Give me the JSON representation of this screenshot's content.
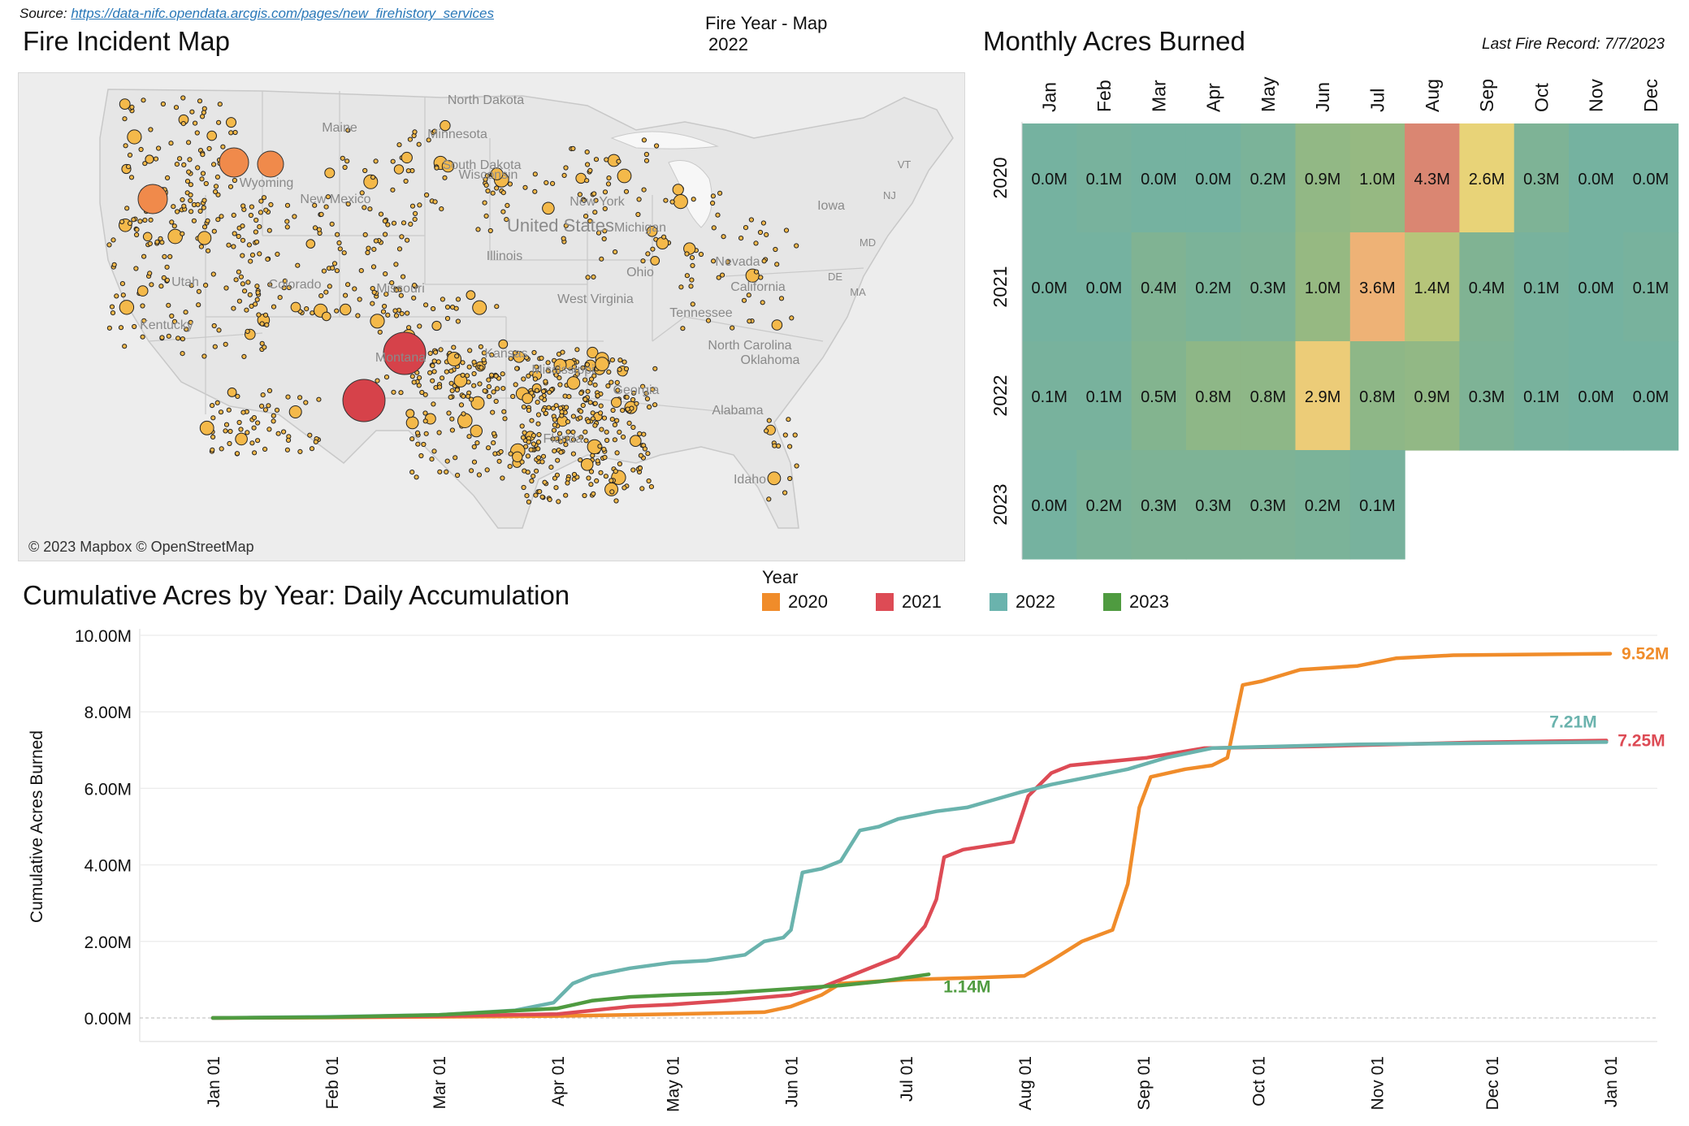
{
  "source": {
    "prefix": "Source:",
    "url": "https://data-nifc.opendata.arcgis.com/pages/new_firehistory_services"
  },
  "map": {
    "title": "Fire Incident Map",
    "param_label": "Fire Year - Map",
    "param_value": "2022",
    "attribution": "© 2023 Mapbox © OpenStreetMap",
    "labels": [
      "North Dakota",
      "Minnesota",
      "South Dakota",
      "Wisconsin",
      "Michigan",
      "New York",
      "Iowa",
      "United States",
      "Illinois",
      "Ohio",
      "Nevada",
      "Utah",
      "Colorado",
      "Missouri",
      "West Virginia",
      "California",
      "Kentucky",
      "Tennessee",
      "North Carolina",
      "Oklahoma",
      "Kansas",
      "Mississippi",
      "Georgia",
      "Alabama",
      "Florida",
      "Idaho",
      "Wyoming",
      "New Mexico",
      "Montana",
      "Maine",
      "VT",
      "NJ",
      "MD",
      "DE",
      "MA"
    ],
    "colors": {
      "small": "#f4b94a",
      "medium": "#f08a4b",
      "large": "#d6424a",
      "land": "#ececec",
      "border": "#b8b8b8"
    }
  },
  "heatmap": {
    "title": "Monthly Acres Burned",
    "last_record": "Last Fire Record: 7/7/2023",
    "months": [
      "Jan",
      "Feb",
      "Mar",
      "Apr",
      "May",
      "Jun",
      "Jul",
      "Aug",
      "Sep",
      "Oct",
      "Nov",
      "Dec"
    ],
    "years": [
      "2020",
      "2021",
      "2022",
      "2023"
    ],
    "values": [
      [
        0.0,
        0.1,
        0.0,
        0.0,
        0.2,
        0.9,
        1.0,
        4.3,
        2.6,
        0.3,
        0.0,
        0.0
      ],
      [
        0.0,
        0.0,
        0.4,
        0.2,
        0.3,
        1.0,
        3.6,
        1.4,
        0.4,
        0.1,
        0.0,
        0.1
      ],
      [
        0.1,
        0.1,
        0.5,
        0.8,
        0.8,
        2.9,
        0.8,
        0.9,
        0.3,
        0.1,
        0.0,
        0.0
      ],
      [
        0.0,
        0.2,
        0.3,
        0.3,
        0.3,
        0.2,
        0.1,
        null,
        null,
        null,
        null,
        null
      ]
    ],
    "unit_suffix": "M"
  },
  "chart_data": {
    "type": "line",
    "title": "Cumulative Acres by Year: Daily Accumulation",
    "ylabel": "Cumulative Acres Burned",
    "xlabel": "",
    "ylim": [
      0,
      10.0
    ],
    "y_ticks": [
      "0.00M",
      "2.00M",
      "4.00M",
      "6.00M",
      "8.00M",
      "10.00M"
    ],
    "x_ticks": [
      "Jan 01",
      "Feb 01",
      "Mar 01",
      "Apr 01",
      "May 01",
      "Jun 01",
      "Jul 01",
      "Aug 01",
      "Sep 01",
      "Oct 01",
      "Nov 01",
      "Dec 01",
      "Jan 01"
    ],
    "legend_title": "Year",
    "legend_position": "top",
    "series": [
      {
        "name": "2020",
        "color": "#f08c2a",
        "end_label": "9.52M",
        "points": [
          [
            1,
            0
          ],
          [
            31,
            0.01
          ],
          [
            60,
            0.03
          ],
          [
            91,
            0.05
          ],
          [
            121,
            0.1
          ],
          [
            145,
            0.15
          ],
          [
            152,
            0.3
          ],
          [
            160,
            0.6
          ],
          [
            165,
            0.9
          ],
          [
            182,
            1.0
          ],
          [
            200,
            1.05
          ],
          [
            213,
            1.1
          ],
          [
            220,
            1.5
          ],
          [
            228,
            2.0
          ],
          [
            236,
            2.3
          ],
          [
            240,
            3.5
          ],
          [
            243,
            5.5
          ],
          [
            246,
            6.3
          ],
          [
            255,
            6.5
          ],
          [
            262,
            6.6
          ],
          [
            266,
            6.8
          ],
          [
            270,
            8.7
          ],
          [
            275,
            8.8
          ],
          [
            285,
            9.1
          ],
          [
            300,
            9.2
          ],
          [
            310,
            9.4
          ],
          [
            325,
            9.48
          ],
          [
            366,
            9.52
          ]
        ]
      },
      {
        "name": "2021",
        "color": "#dd4b55",
        "end_label": "7.25M",
        "points": [
          [
            1,
            0
          ],
          [
            31,
            0.02
          ],
          [
            60,
            0.05
          ],
          [
            91,
            0.1
          ],
          [
            110,
            0.3
          ],
          [
            121,
            0.35
          ],
          [
            135,
            0.45
          ],
          [
            152,
            0.6
          ],
          [
            160,
            0.8
          ],
          [
            170,
            1.2
          ],
          [
            180,
            1.6
          ],
          [
            187,
            2.4
          ],
          [
            190,
            3.1
          ],
          [
            192,
            4.2
          ],
          [
            197,
            4.4
          ],
          [
            210,
            4.6
          ],
          [
            214,
            5.8
          ],
          [
            220,
            6.4
          ],
          [
            225,
            6.6
          ],
          [
            235,
            6.7
          ],
          [
            245,
            6.8
          ],
          [
            260,
            7.05
          ],
          [
            290,
            7.1
          ],
          [
            330,
            7.2
          ],
          [
            365,
            7.25
          ]
        ]
      },
      {
        "name": "2022",
        "color": "#6ab3ad",
        "end_label": "7.21M",
        "points": [
          [
            1,
            0
          ],
          [
            31,
            0.03
          ],
          [
            60,
            0.08
          ],
          [
            80,
            0.2
          ],
          [
            90,
            0.4
          ],
          [
            95,
            0.9
          ],
          [
            100,
            1.1
          ],
          [
            110,
            1.3
          ],
          [
            121,
            1.45
          ],
          [
            130,
            1.5
          ],
          [
            140,
            1.65
          ],
          [
            145,
            2.0
          ],
          [
            150,
            2.1
          ],
          [
            152,
            2.3
          ],
          [
            155,
            3.8
          ],
          [
            160,
            3.9
          ],
          [
            165,
            4.1
          ],
          [
            170,
            4.9
          ],
          [
            175,
            5.0
          ],
          [
            180,
            5.2
          ],
          [
            190,
            5.4
          ],
          [
            198,
            5.5
          ],
          [
            205,
            5.7
          ],
          [
            212,
            5.9
          ],
          [
            220,
            6.1
          ],
          [
            230,
            6.3
          ],
          [
            240,
            6.5
          ],
          [
            250,
            6.8
          ],
          [
            262,
            7.05
          ],
          [
            300,
            7.15
          ],
          [
            365,
            7.21
          ]
        ]
      },
      {
        "name": "2023",
        "color": "#4f9b40",
        "end_label": "1.14M",
        "points": [
          [
            1,
            0
          ],
          [
            31,
            0.02
          ],
          [
            60,
            0.08
          ],
          [
            91,
            0.25
          ],
          [
            100,
            0.45
          ],
          [
            110,
            0.55
          ],
          [
            121,
            0.6
          ],
          [
            135,
            0.65
          ],
          [
            150,
            0.75
          ],
          [
            165,
            0.85
          ],
          [
            175,
            0.95
          ],
          [
            182,
            1.05
          ],
          [
            188,
            1.14
          ]
        ]
      }
    ]
  }
}
